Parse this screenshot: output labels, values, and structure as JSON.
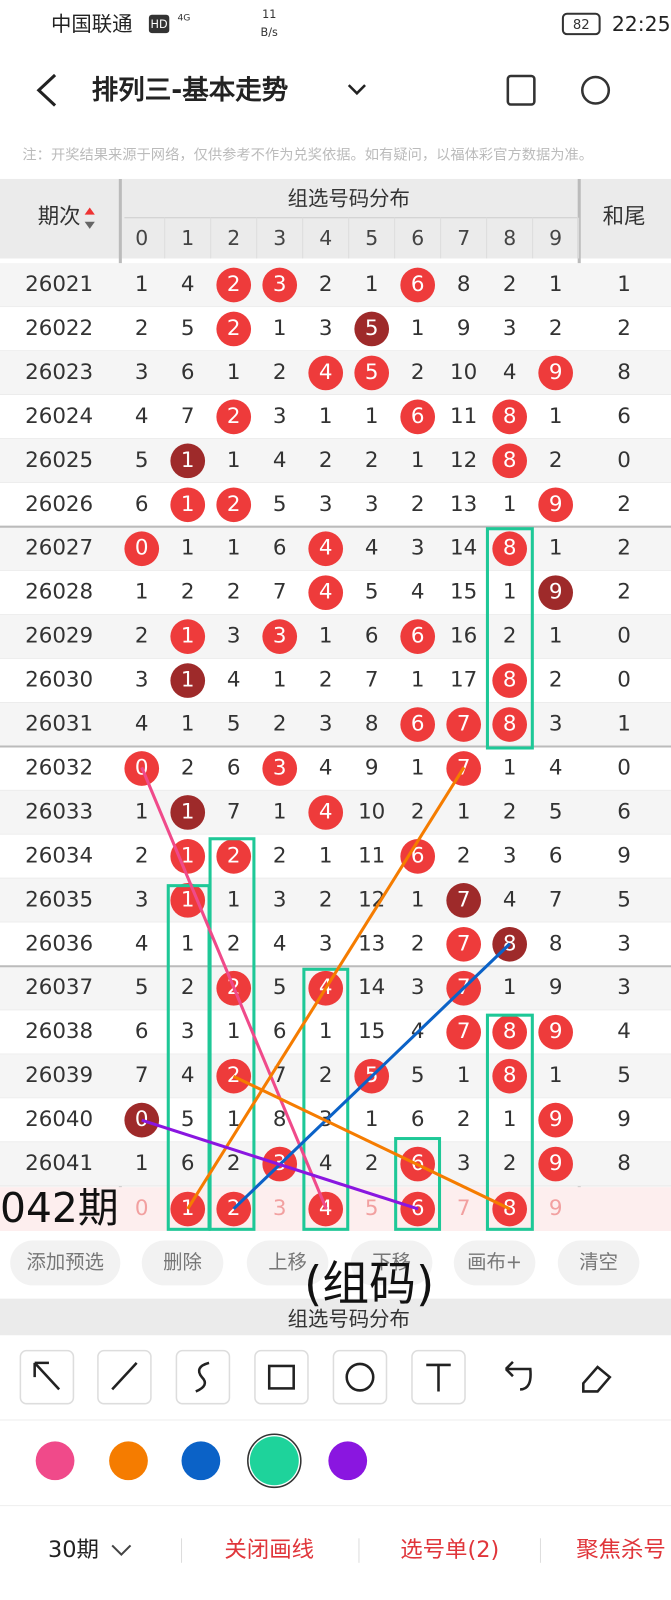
{
  "status_bar": {
    "carrier": "中国联通",
    "hd": "HD",
    "network": "4G",
    "speed": "11",
    "speed_unit": "B/s",
    "battery": "82",
    "time": "22:25"
  },
  "nav": {
    "title": "排列三-基本走势"
  },
  "notice": "注：开奖结果来源于网络，仅供参考不作为兑奖依据。如有疑问，以福体彩官方数据为准。",
  "table": {
    "issue_header": "期次",
    "group_header": "组选号码分布",
    "tail_header": "和尾",
    "digits": [
      0,
      1,
      2,
      3,
      4,
      5,
      6,
      7,
      8,
      9
    ],
    "rows": [
      {
        "issue": "26021",
        "cells": [
          1,
          4,
          2,
          3,
          2,
          1,
          6,
          8,
          2,
          1
        ],
        "red": [
          2,
          3,
          6
        ],
        "dark": [],
        "tail": 1
      },
      {
        "issue": "26022",
        "cells": [
          2,
          5,
          2,
          1,
          3,
          5,
          1,
          9,
          3,
          2
        ],
        "red": [
          2
        ],
        "dark": [
          5
        ],
        "tail": 2
      },
      {
        "issue": "26023",
        "cells": [
          3,
          6,
          1,
          2,
          4,
          5,
          2,
          10,
          4,
          9
        ],
        "red": [
          4,
          5,
          9
        ],
        "dark": [],
        "tail": 8
      },
      {
        "issue": "26024",
        "cells": [
          4,
          7,
          2,
          3,
          1,
          1,
          6,
          11,
          8,
          1
        ],
        "red": [
          2,
          6,
          8
        ],
        "dark": [],
        "tail": 6
      },
      {
        "issue": "26025",
        "cells": [
          5,
          1,
          1,
          4,
          2,
          2,
          1,
          12,
          8,
          2
        ],
        "red": [
          8
        ],
        "dark": [
          1
        ],
        "tail": 0
      },
      {
        "issue": "26026",
        "cells": [
          6,
          1,
          2,
          5,
          3,
          3,
          2,
          13,
          1,
          9
        ],
        "red": [
          1,
          2,
          9
        ],
        "dark": [],
        "tail": 2
      },
      {
        "issue": "26027",
        "cells": [
          0,
          1,
          1,
          6,
          4,
          4,
          3,
          14,
          8,
          1
        ],
        "red": [
          0,
          4,
          8
        ],
        "dark": [],
        "tail": 2
      },
      {
        "issue": "26028",
        "cells": [
          1,
          2,
          2,
          7,
          4,
          5,
          4,
          15,
          1,
          9
        ],
        "red": [
          4
        ],
        "dark": [
          9
        ],
        "tail": 2
      },
      {
        "issue": "26029",
        "cells": [
          2,
          1,
          3,
          3,
          1,
          6,
          6,
          16,
          2,
          1
        ],
        "red": [
          1,
          3,
          6
        ],
        "dark": [],
        "tail": 0
      },
      {
        "issue": "26030",
        "cells": [
          3,
          1,
          4,
          1,
          2,
          7,
          1,
          17,
          8,
          2
        ],
        "red": [
          8
        ],
        "dark": [
          1
        ],
        "tail": 0
      },
      {
        "issue": "26031",
        "cells": [
          4,
          1,
          5,
          2,
          3,
          8,
          6,
          7,
          8,
          3
        ],
        "red": [
          6,
          7,
          8
        ],
        "dark": [],
        "tail": 1
      },
      {
        "issue": "26032",
        "cells": [
          0,
          2,
          6,
          3,
          4,
          9,
          1,
          7,
          1,
          4
        ],
        "red": [
          0,
          3,
          7
        ],
        "dark": [],
        "tail": 0
      },
      {
        "issue": "26033",
        "cells": [
          1,
          1,
          7,
          1,
          4,
          10,
          2,
          1,
          2,
          5
        ],
        "red": [
          4
        ],
        "dark": [
          1
        ],
        "tail": 6
      },
      {
        "issue": "26034",
        "cells": [
          2,
          1,
          2,
          2,
          1,
          11,
          6,
          2,
          3,
          6
        ],
        "red": [
          1,
          2,
          6
        ],
        "dark": [],
        "tail": 9
      },
      {
        "issue": "26035",
        "cells": [
          3,
          1,
          1,
          3,
          2,
          12,
          1,
          7,
          4,
          7
        ],
        "red": [
          1
        ],
        "dark": [
          7
        ],
        "tail": 5
      },
      {
        "issue": "26036",
        "cells": [
          4,
          1,
          2,
          4,
          3,
          13,
          2,
          7,
          8,
          8
        ],
        "red": [
          7
        ],
        "dark": [
          8
        ],
        "tail": 3
      },
      {
        "issue": "26037",
        "cells": [
          5,
          2,
          2,
          5,
          4,
          14,
          3,
          7,
          1,
          9
        ],
        "red": [
          2,
          4,
          7
        ],
        "dark": [],
        "tail": 3
      },
      {
        "issue": "26038",
        "cells": [
          6,
          3,
          1,
          6,
          1,
          15,
          4,
          7,
          8,
          9
        ],
        "red": [
          7,
          8,
          9
        ],
        "dark": [],
        "tail": 4
      },
      {
        "issue": "26039",
        "cells": [
          7,
          4,
          2,
          7,
          2,
          5,
          5,
          1,
          8,
          1
        ],
        "red": [
          2,
          5,
          8
        ],
        "dark": [],
        "tail": 5
      },
      {
        "issue": "26040",
        "cells": [
          0,
          5,
          1,
          8,
          3,
          1,
          6,
          2,
          1,
          9
        ],
        "red": [
          9
        ],
        "dark": [
          0
        ],
        "tail": 9
      },
      {
        "issue": "26041",
        "cells": [
          1,
          6,
          2,
          3,
          4,
          2,
          6,
          3,
          2,
          9
        ],
        "red": [
          3,
          6,
          9
        ],
        "dark": [],
        "tail": 8
      }
    ],
    "preview": {
      "cells": [
        0,
        1,
        2,
        3,
        4,
        5,
        6,
        7,
        8,
        9
      ],
      "red": [
        1,
        2,
        4,
        6,
        8
      ]
    }
  },
  "overlay": {
    "period": "042期",
    "group_label": "(组码)"
  },
  "toolbar": [
    "添加预选",
    "删除",
    "上移",
    "下移",
    "画布+",
    "清空"
  ],
  "second_header": "组选号码分布",
  "palette": [
    "#f04a8a",
    "#f57c00",
    "#0b62c7",
    "#1ed39b",
    "#8a16e0"
  ],
  "bottom_bar": {
    "period": "30期",
    "close_draw": "关闭画线",
    "pick_list": "选号单(2)",
    "focus": "聚焦杀号"
  }
}
